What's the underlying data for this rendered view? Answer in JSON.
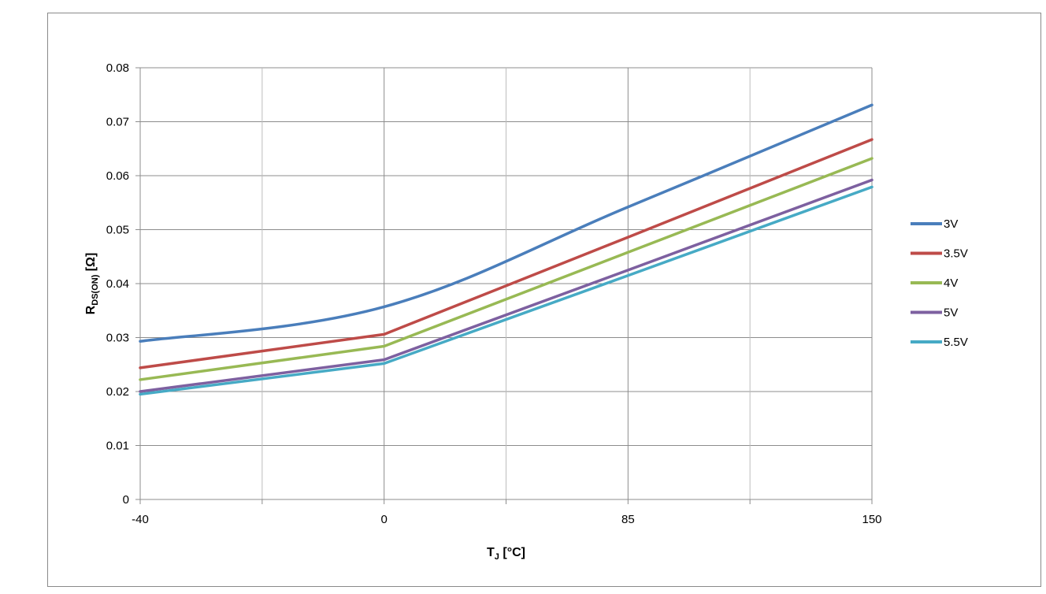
{
  "chart_data": {
    "type": "line",
    "x": [
      -40,
      0,
      85,
      150
    ],
    "xlabel": {
      "main": "T",
      "sub": "J",
      "unit": " [°C]"
    },
    "ylabel": {
      "main": "R",
      "sub": "DS(ON)",
      "unit": " [Ω]"
    },
    "ylim": [
      0,
      0.08
    ],
    "yticks": [
      "0",
      "0.01",
      "0.02",
      "0.03",
      "0.04",
      "0.05",
      "0.06",
      "0.07",
      "0.08"
    ],
    "xticks": [
      "-40",
      "0",
      "85",
      "150"
    ],
    "grid": true,
    "legend_position": "right",
    "series": [
      {
        "name": "3V",
        "color": "#4a7ebb",
        "values": [
          0.0293,
          0.0357,
          0.0542,
          0.0731
        ]
      },
      {
        "name": "3.5V",
        "color": "#be4b48",
        "values": [
          0.0244,
          0.0306,
          0.0486,
          0.0667
        ]
      },
      {
        "name": "4V",
        "color": "#98b954",
        "values": [
          0.0222,
          0.0284,
          0.0458,
          0.0632
        ]
      },
      {
        "name": "5V",
        "color": "#7d60a0",
        "values": [
          0.02,
          0.0259,
          0.0425,
          0.0592
        ]
      },
      {
        "name": "5.5V",
        "color": "#46aac5",
        "values": [
          0.0195,
          0.0252,
          0.0415,
          0.0579
        ]
      }
    ]
  }
}
